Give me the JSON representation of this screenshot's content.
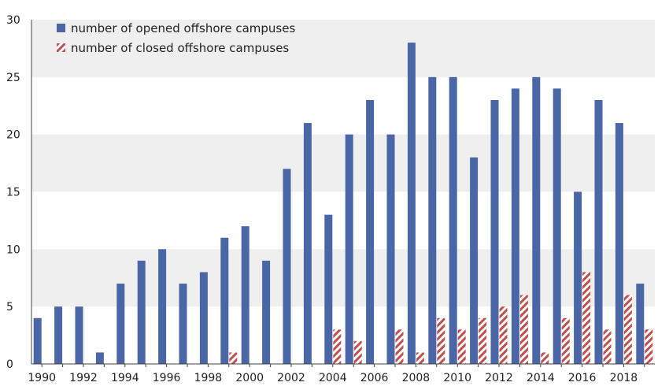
{
  "chart_data": {
    "type": "bar",
    "x": [
      1990,
      1991,
      1992,
      1993,
      1994,
      1995,
      1996,
      1997,
      1998,
      1999,
      2000,
      2001,
      2002,
      2003,
      2004,
      2005,
      2006,
      2007,
      2008,
      2009,
      2010,
      2011,
      2012,
      2013,
      2014,
      2015,
      2016,
      2017,
      2018,
      2019
    ],
    "x_tick_labels": [
      "1990",
      "1992",
      "1994",
      "1996",
      "1998",
      "2000",
      "2002",
      "2004",
      "2006",
      "2008",
      "2010",
      "2012",
      "2014",
      "2016",
      "2018"
    ],
    "series": [
      {
        "name": "number of opened offshore campuses",
        "color": "#4a66a6",
        "fill": "solid",
        "values": [
          4,
          5,
          5,
          1,
          7,
          9,
          10,
          7,
          8,
          11,
          12,
          9,
          17,
          21,
          13,
          20,
          23,
          20,
          28,
          25,
          25,
          18,
          23,
          24,
          25,
          24,
          15,
          23,
          21,
          7
        ]
      },
      {
        "name": "number of closed offshore campuses",
        "color": "#c0504d",
        "fill": "hatched",
        "values": [
          0,
          0,
          0,
          0,
          0,
          0,
          0,
          0,
          0,
          1,
          0,
          0,
          0,
          0,
          3,
          2,
          0,
          3,
          1,
          4,
          3,
          4,
          5,
          6,
          1,
          4,
          8,
          3,
          6,
          3
        ]
      }
    ],
    "ylim": [
      0,
      30
    ],
    "yticks": [
      0,
      5,
      10,
      15,
      20,
      25,
      30
    ],
    "grid": "alternating horizontal bands",
    "legend_placement": "top-left",
    "band_color": "#efefef"
  }
}
